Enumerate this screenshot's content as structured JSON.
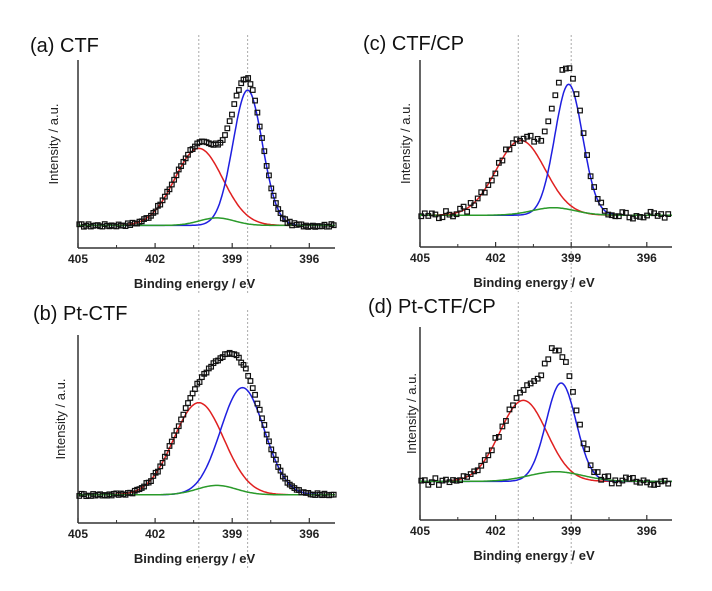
{
  "chart_data": [
    {
      "type": "line",
      "panel_label": "(a) CTF",
      "xlabel": "Binding energy / eV",
      "ylabel": "Intensity / a.u.",
      "xlim": [
        405,
        395
      ],
      "x_reversed": true,
      "ylim": [
        0,
        1
      ],
      "xticks": [
        405,
        402,
        399,
        396
      ],
      "reference_lines_eV": [
        400.3,
        398.4
      ],
      "background": 0.12,
      "series": [
        {
          "component": "fit-1",
          "color": "#e02020",
          "center": 400.3,
          "fwhm": 2.2,
          "height": 0.41
        },
        {
          "component": "fit-2",
          "color": "#1f1fe0",
          "center": 398.4,
          "fwhm": 1.35,
          "height": 0.72
        },
        {
          "component": "fit-3",
          "color": "#2a9a2a",
          "center": 399.6,
          "fwhm": 1.6,
          "height": 0.04
        }
      ],
      "markers": "open-squares"
    },
    {
      "type": "line",
      "panel_label": "(b) Pt-CTF",
      "xlabel": "Binding energy / eV",
      "ylabel": "Intensity / a.u.",
      "xlim": [
        405,
        395
      ],
      "x_reversed": true,
      "ylim": [
        0,
        1
      ],
      "xticks": [
        405,
        402,
        399,
        396
      ],
      "reference_lines_eV": [
        400.3,
        398.4
      ],
      "background": 0.15,
      "series": [
        {
          "component": "fit-1",
          "color": "#e02020",
          "center": 400.3,
          "fwhm": 2.3,
          "height": 0.49
        },
        {
          "component": "fit-2",
          "color": "#1f1fe0",
          "center": 398.6,
          "fwhm": 2.0,
          "height": 0.57
        },
        {
          "component": "fit-3",
          "color": "#2a9a2a",
          "center": 399.6,
          "fwhm": 1.8,
          "height": 0.05
        }
      ],
      "markers": "open-squares"
    },
    {
      "type": "line",
      "panel_label": "(c) CTF/CP",
      "xlabel": "Binding energy / eV",
      "ylabel": "Intensity / a.u.",
      "xlim": [
        405,
        395
      ],
      "x_reversed": true,
      "ylim": [
        0,
        1
      ],
      "xticks": [
        405,
        402,
        399,
        396
      ],
      "reference_lines_eV": [
        401.1,
        399.0
      ],
      "background": 0.17,
      "series": [
        {
          "component": "fit-1",
          "color": "#e02020",
          "center": 401.0,
          "fwhm": 2.3,
          "height": 0.4
        },
        {
          "component": "fit-2",
          "color": "#1f1fe0",
          "center": 399.1,
          "fwhm": 1.3,
          "height": 0.7
        },
        {
          "component": "fit-3",
          "color": "#2a9a2a",
          "center": 399.7,
          "fwhm": 2.0,
          "height": 0.04
        }
      ],
      "markers": "open-squares"
    },
    {
      "type": "line",
      "panel_label": "(d) Pt-CTF/CP",
      "xlabel": "Binding energy / eV",
      "ylabel": "Intensity / a.u.",
      "xlim": [
        405,
        395
      ],
      "x_reversed": true,
      "ylim": [
        0,
        1
      ],
      "xticks": [
        405,
        402,
        399,
        396
      ],
      "reference_lines_eV": [
        401.1,
        399.0
      ],
      "background": 0.2,
      "series": [
        {
          "component": "fit-1",
          "color": "#e02020",
          "center": 400.9,
          "fwhm": 2.2,
          "height": 0.42
        },
        {
          "component": "fit-2",
          "color": "#1f1fe0",
          "center": 399.4,
          "fwhm": 1.4,
          "height": 0.51
        },
        {
          "component": "fit-3",
          "color": "#2a9a2a",
          "center": 399.6,
          "fwhm": 2.5,
          "height": 0.05
        }
      ],
      "markers": "open-squares"
    }
  ]
}
